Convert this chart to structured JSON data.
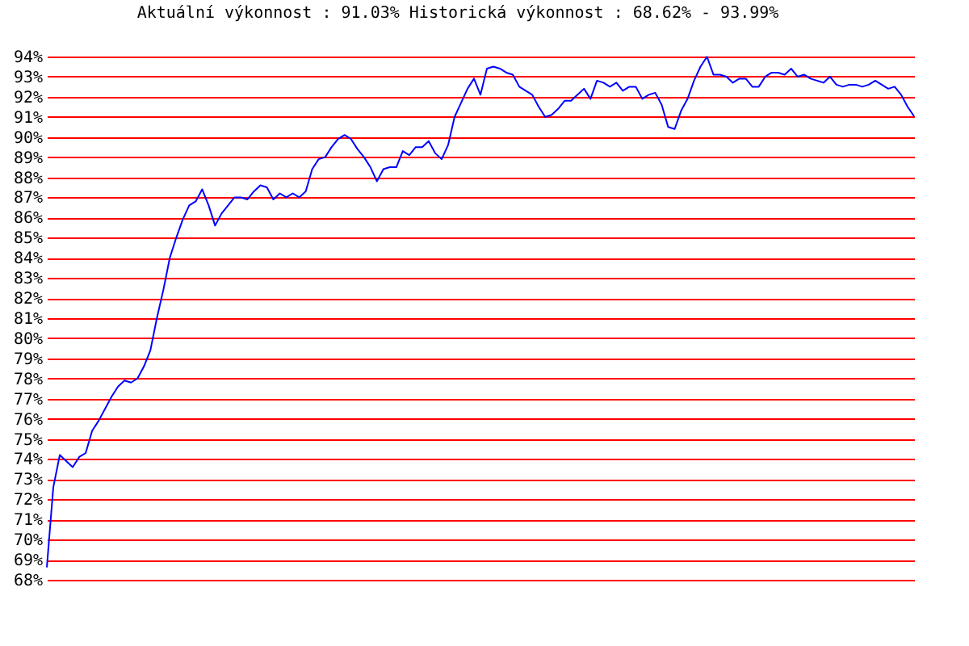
{
  "chart_data": {
    "type": "line",
    "title": "Aktuální výkonnost : 91.03%  Historická výkonnost : 68.62% - 93.99%",
    "categories": [
      null,
      null,
      null,
      null,
      null,
      null,
      null,
      null,
      null,
      null,
      null,
      null,
      null,
      null,
      null,
      null,
      null,
      null,
      null,
      null,
      null,
      null,
      null,
      null,
      null,
      null,
      null,
      null,
      null,
      null,
      null,
      null,
      null,
      null,
      null,
      null,
      null,
      null,
      null,
      null,
      null,
      null,
      null,
      null,
      null,
      null,
      null,
      null,
      null,
      null,
      null,
      null,
      null,
      null,
      null,
      null,
      null,
      null,
      null,
      null,
      null,
      null,
      null,
      null,
      null,
      null,
      null,
      null,
      null,
      null,
      null,
      null,
      null,
      null,
      null,
      null,
      null,
      null,
      null,
      null,
      null,
      null,
      null,
      null,
      null,
      null,
      null,
      null,
      null,
      null,
      null,
      null,
      null,
      null,
      null,
      null,
      null,
      null,
      null,
      null,
      null,
      null,
      null,
      null,
      null,
      null,
      null,
      null,
      null,
      null,
      null,
      null,
      null,
      null,
      null,
      null,
      null,
      null,
      null,
      null,
      null,
      null,
      null,
      null,
      null,
      null,
      null,
      null,
      null,
      null,
      null,
      null,
      null,
      null,
      null
    ],
    "series": [
      {
        "color": "#0000ff",
        "values": [
          68.62,
          72.6,
          74.2,
          73.9,
          73.6,
          74.1,
          74.3,
          75.4,
          75.9,
          76.5,
          77.1,
          77.6,
          77.9,
          77.8,
          78.0,
          78.6,
          79.4,
          81.0,
          82.4,
          84.0,
          85.0,
          85.9,
          86.6,
          86.8,
          87.4,
          86.6,
          85.6,
          86.2,
          86.6,
          87.0,
          87.0,
          86.9,
          87.3,
          87.6,
          87.5,
          86.9,
          87.2,
          87.0,
          87.2,
          87.0,
          87.3,
          88.4,
          88.9,
          89.0,
          89.5,
          89.9,
          90.1,
          89.9,
          89.4,
          89.0,
          88.5,
          87.8,
          88.4,
          88.5,
          88.5,
          89.3,
          89.1,
          89.5,
          89.5,
          89.8,
          89.2,
          88.9,
          89.6,
          91.0,
          91.7,
          92.4,
          92.9,
          92.1,
          93.4,
          93.5,
          93.4,
          93.2,
          93.1,
          92.5,
          92.3,
          92.1,
          91.5,
          91.0,
          91.1,
          91.4,
          91.8,
          91.8,
          92.1,
          92.4,
          91.9,
          92.8,
          92.7,
          92.5,
          92.7,
          92.3,
          92.5,
          92.5,
          91.9,
          92.1,
          92.2,
          91.6,
          90.5,
          90.4,
          91.3,
          91.9,
          92.8,
          93.5,
          93.99,
          93.1,
          93.1,
          93.0,
          92.7,
          92.9,
          92.9,
          92.5,
          92.5,
          93.0,
          93.2,
          93.2,
          93.1,
          93.4,
          93.0,
          93.1,
          92.9,
          92.8,
          92.7,
          93.0,
          92.6,
          92.5,
          92.6,
          92.6,
          92.5,
          92.6,
          92.8,
          92.6,
          92.4,
          92.5,
          92.1,
          91.5,
          91.03
        ]
      }
    ],
    "ylim": [
      68,
      94
    ],
    "yticks": [
      {
        "value": 68,
        "label": "68%"
      },
      {
        "value": 69,
        "label": "69%"
      },
      {
        "value": 70,
        "label": "70%"
      },
      {
        "value": 71,
        "label": "71%"
      },
      {
        "value": 72,
        "label": "72%"
      },
      {
        "value": 73,
        "label": "73%"
      },
      {
        "value": 74,
        "label": "74%"
      },
      {
        "value": 75,
        "label": "75%"
      },
      {
        "value": 76,
        "label": "76%"
      },
      {
        "value": 77,
        "label": "77%"
      },
      {
        "value": 78,
        "label": "78%"
      },
      {
        "value": 79,
        "label": "79%"
      },
      {
        "value": 80,
        "label": "80%"
      },
      {
        "value": 81,
        "label": "81%"
      },
      {
        "value": 82,
        "label": "82%"
      },
      {
        "value": 83,
        "label": "83%"
      },
      {
        "value": 84,
        "label": "84%"
      },
      {
        "value": 85,
        "label": "85%"
      },
      {
        "value": 86,
        "label": "86%"
      },
      {
        "value": 87,
        "label": "87%"
      },
      {
        "value": 88,
        "label": "88%"
      },
      {
        "value": 89,
        "label": "89%"
      },
      {
        "value": 90,
        "label": "90%"
      },
      {
        "value": 91,
        "label": "91%"
      },
      {
        "value": 92,
        "label": "92%"
      },
      {
        "value": 93,
        "label": "93%"
      },
      {
        "value": 94,
        "label": "94%"
      }
    ],
    "grid": "y",
    "legend": false,
    "marker": "none",
    "line_style": "solid",
    "tick_labels": "y"
  }
}
